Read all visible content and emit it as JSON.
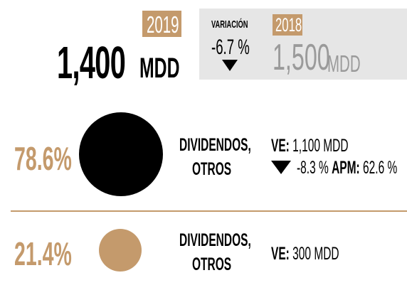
{
  "current": {
    "year": "2019",
    "value": "1,400",
    "unit": "MDD"
  },
  "comparison": {
    "label": "VARIACIÓN",
    "variation": "-6.7 %",
    "year": "2018",
    "value": "1,500",
    "unit": "MDD"
  },
  "rows": [
    {
      "share": "78.6%",
      "label": [
        "DIVIDENDOS,",
        "OTROS"
      ],
      "ve_label": "VE:",
      "ve_value": "1,100 MDD",
      "change": "-8.3 %",
      "apm_label": "APM:",
      "apm_value": "62.6 %"
    },
    {
      "share": "21.4%",
      "label": [
        "DIVIDENDOS,",
        "OTROS"
      ],
      "ve_label": "VE:",
      "ve_value": "300 MDD"
    }
  ]
}
